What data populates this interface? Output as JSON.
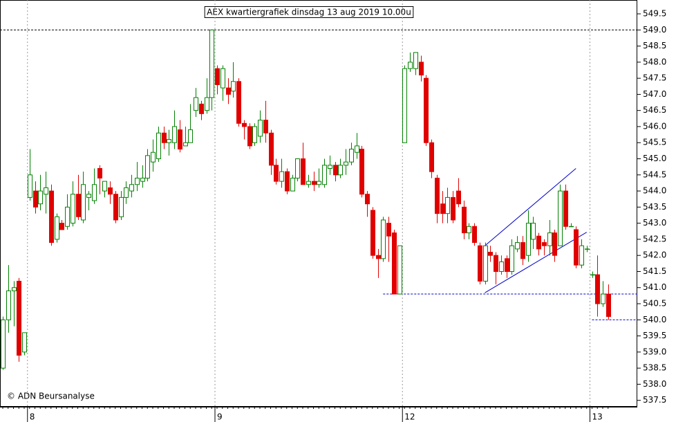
{
  "chart_data": {
    "type": "candlestick",
    "title": "AEX kwartiergrafiek dinsdag 13 aug 2019 10.00u",
    "annotation": "© ADN Beursanalyse",
    "categories": [
      null,
      null,
      null,
      null,
      null,
      "8",
      null,
      null,
      null,
      null,
      null,
      null,
      null,
      null,
      null,
      null,
      null,
      null,
      null,
      null,
      null,
      null,
      null,
      null,
      null,
      null,
      null,
      null,
      null,
      null,
      null,
      null,
      null,
      null,
      null,
      null,
      null,
      null,
      null,
      null,
      "9",
      null,
      null,
      null,
      null,
      null,
      null,
      null,
      null,
      null,
      null,
      null,
      null,
      null,
      null,
      null,
      null,
      null,
      null,
      null,
      null,
      null,
      null,
      null,
      null,
      null,
      null,
      null,
      null,
      null,
      null,
      null,
      null,
      null,
      null,
      "12",
      null,
      null,
      null,
      null,
      null,
      null,
      null,
      null,
      null,
      null,
      null,
      null,
      null,
      null,
      null,
      null,
      null,
      null,
      null,
      null,
      null,
      null,
      null,
      null,
      null,
      null,
      null,
      null,
      null,
      null,
      null,
      null,
      null,
      null,
      "13",
      null,
      null,
      null
    ],
    "ohlc": [
      [
        538.5,
        540.1,
        538.45,
        540.0
      ],
      [
        540.0,
        541.7,
        539.6,
        540.9
      ],
      [
        540.9,
        541.2,
        539.8,
        541.0
      ],
      [
        541.2,
        541.3,
        538.7,
        538.9
      ],
      [
        539.0,
        539.6,
        538.9,
        539.6
      ],
      [
        543.8,
        545.3,
        543.7,
        544.5
      ],
      [
        544.0,
        544.3,
        543.3,
        543.5
      ],
      [
        543.6,
        544.5,
        543.4,
        544.0
      ],
      [
        543.9,
        544.6,
        543.3,
        544.1
      ],
      [
        544.0,
        544.2,
        542.3,
        542.4
      ],
      [
        542.5,
        543.3,
        542.4,
        543.2
      ],
      [
        543.0,
        543.1,
        542.8,
        542.8
      ],
      [
        542.9,
        543.9,
        542.8,
        543.5
      ],
      [
        543.0,
        544.3,
        542.9,
        543.9
      ],
      [
        543.9,
        544.5,
        543.1,
        543.2
      ],
      [
        543.1,
        544.6,
        543.0,
        544.2
      ],
      [
        543.8,
        544.0,
        543.4,
        543.9
      ],
      [
        543.7,
        544.7,
        543.6,
        544.2
      ],
      [
        544.7,
        544.8,
        543.9,
        544.4
      ],
      [
        544.0,
        544.3,
        543.8,
        544.3
      ],
      [
        544.1,
        544.3,
        543.6,
        543.9
      ],
      [
        543.9,
        544.0,
        543.0,
        543.1
      ],
      [
        543.2,
        544.0,
        543.1,
        543.8
      ],
      [
        543.8,
        544.3,
        543.6,
        544.1
      ],
      [
        544.0,
        544.5,
        543.8,
        544.2
      ],
      [
        544.2,
        544.9,
        544.0,
        544.4
      ],
      [
        544.3,
        544.8,
        544.1,
        544.4
      ],
      [
        544.4,
        545.3,
        544.3,
        545.1
      ],
      [
        544.9,
        545.6,
        544.6,
        545.2
      ],
      [
        545.0,
        546.0,
        544.9,
        545.8
      ],
      [
        545.8,
        546.0,
        545.3,
        545.5
      ],
      [
        545.5,
        545.9,
        545.1,
        545.6
      ],
      [
        545.5,
        546.5,
        545.3,
        546.0
      ],
      [
        545.9,
        546.2,
        545.2,
        545.3
      ],
      [
        545.4,
        546.0,
        545.4,
        545.5
      ],
      [
        545.5,
        546.7,
        545.5,
        545.9
      ],
      [
        546.5,
        547.2,
        546.3,
        546.9
      ],
      [
        546.7,
        546.8,
        546.2,
        546.4
      ],
      [
        546.5,
        547.5,
        546.4,
        546.9
      ],
      [
        546.9,
        549.0,
        546.5,
        549.0
      ],
      [
        547.8,
        547.9,
        547.0,
        547.3
      ],
      [
        547.2,
        547.9,
        546.8,
        547.8
      ],
      [
        547.2,
        547.5,
        546.7,
        547.0
      ],
      [
        547.1,
        548.0,
        546.9,
        547.4
      ],
      [
        547.4,
        547.5,
        546.0,
        546.1
      ],
      [
        546.1,
        546.2,
        545.6,
        546.0
      ],
      [
        546.0,
        546.1,
        545.3,
        545.4
      ],
      [
        545.5,
        546.1,
        545.4,
        546.0
      ],
      [
        545.7,
        546.5,
        545.5,
        546.2
      ],
      [
        546.2,
        546.8,
        545.5,
        545.8
      ],
      [
        545.8,
        545.9,
        544.5,
        544.8
      ],
      [
        544.8,
        545.0,
        544.2,
        544.3
      ],
      [
        544.3,
        545.0,
        544.1,
        544.6
      ],
      [
        544.6,
        544.7,
        543.9,
        544.0
      ],
      [
        544.0,
        544.5,
        544.0,
        544.4
      ],
      [
        544.4,
        545.0,
        544.3,
        545.0
      ],
      [
        545.0,
        545.5,
        544.2,
        544.2
      ],
      [
        544.2,
        544.5,
        544.1,
        544.3
      ],
      [
        544.3,
        544.6,
        544.0,
        544.2
      ],
      [
        544.2,
        544.7,
        544.1,
        544.3
      ],
      [
        544.2,
        545.0,
        544.1,
        544.8
      ],
      [
        544.7,
        545.1,
        544.5,
        544.8
      ],
      [
        544.8,
        544.9,
        544.3,
        544.5
      ],
      [
        544.5,
        545.0,
        544.4,
        544.8
      ],
      [
        544.8,
        545.3,
        544.5,
        544.9
      ],
      [
        544.9,
        545.5,
        544.8,
        545.3
      ],
      [
        545.2,
        545.8,
        545.0,
        545.4
      ],
      [
        545.3,
        545.4,
        543.8,
        543.9
      ],
      [
        543.9,
        544.0,
        543.2,
        543.6
      ],
      [
        543.4,
        543.5,
        541.9,
        542.0
      ],
      [
        542.0,
        542.2,
        541.3,
        541.9
      ],
      [
        541.9,
        543.2,
        541.8,
        543.1
      ],
      [
        543.0,
        543.2,
        541.8,
        542.6
      ],
      [
        542.7,
        542.8,
        540.8,
        540.8
      ],
      [
        540.8,
        542.3,
        540.8,
        542.3
      ],
      [
        545.5,
        547.9,
        545.5,
        547.8
      ],
      [
        547.8,
        548.3,
        547.7,
        548.0
      ],
      [
        547.8,
        548.3,
        547.6,
        548.3
      ],
      [
        548.0,
        548.2,
        547.4,
        547.6
      ],
      [
        547.5,
        547.6,
        545.4,
        545.5
      ],
      [
        545.5,
        545.6,
        544.4,
        544.6
      ],
      [
        544.4,
        544.5,
        543.0,
        543.3
      ],
      [
        543.6,
        544.0,
        543.0,
        543.3
      ],
      [
        543.3,
        544.1,
        543.0,
        543.8
      ],
      [
        543.8,
        544.0,
        543.0,
        543.1
      ],
      [
        544.0,
        544.4,
        543.5,
        543.6
      ],
      [
        543.5,
        543.7,
        542.5,
        542.7
      ],
      [
        542.7,
        543.0,
        542.5,
        542.9
      ],
      [
        542.9,
        543.0,
        542.3,
        542.4
      ],
      [
        542.3,
        542.4,
        541.1,
        541.2
      ],
      [
        541.2,
        542.4,
        541.1,
        542.3
      ],
      [
        542.1,
        542.3,
        541.8,
        542.0
      ],
      [
        542.0,
        542.1,
        541.1,
        541.5
      ],
      [
        541.5,
        542.0,
        541.4,
        541.8
      ],
      [
        541.9,
        542.0,
        541.3,
        541.5
      ],
      [
        541.5,
        542.5,
        541.4,
        542.3
      ],
      [
        542.2,
        542.6,
        542.1,
        542.4
      ],
      [
        542.4,
        542.6,
        541.7,
        541.9
      ],
      [
        542.0,
        543.4,
        541.8,
        543.0
      ],
      [
        542.5,
        543.2,
        542.2,
        543.0
      ],
      [
        542.6,
        542.7,
        542.0,
        542.2
      ],
      [
        542.4,
        542.5,
        542.0,
        542.3
      ],
      [
        542.3,
        543.1,
        542.0,
        542.7
      ],
      [
        542.7,
        542.8,
        541.8,
        542.0
      ],
      [
        542.3,
        544.2,
        542.3,
        544.0
      ],
      [
        544.0,
        544.2,
        542.8,
        542.9
      ],
      [
        542.9,
        543.0,
        542.9,
        542.9
      ],
      [
        542.8,
        542.9,
        541.6,
        541.7
      ],
      [
        541.7,
        542.5,
        541.6,
        542.3
      ],
      [
        542.2,
        542.3,
        542.1,
        542.2
      ],
      [
        541.4,
        541.5,
        541.3,
        541.4
      ],
      [
        541.4,
        542.0,
        540.1,
        540.5
      ],
      [
        540.5,
        541.2,
        540.4,
        540.8
      ],
      [
        540.8,
        541.1,
        540.0,
        540.1
      ]
    ],
    "up_color": "#008000",
    "down_color": "#e00000",
    "ylim": [
      537.3,
      549.93
    ],
    "yticks": [
      {
        "value": 537.5,
        "label": "537.5"
      },
      {
        "value": 538,
        "label": "538.0"
      },
      {
        "value": 538.5,
        "label": "538.5"
      },
      {
        "value": 539,
        "label": "539.0"
      },
      {
        "value": 539.5,
        "label": "539.5"
      },
      {
        "value": 540,
        "label": "540.0"
      },
      {
        "value": 540.5,
        "label": "540.5"
      },
      {
        "value": 541,
        "label": "541.0"
      },
      {
        "value": 541.5,
        "label": "541.5"
      },
      {
        "value": 542,
        "label": "542.0"
      },
      {
        "value": 542.5,
        "label": "542.5"
      },
      {
        "value": 543,
        "label": "543.0"
      },
      {
        "value": 543.5,
        "label": "543.5"
      },
      {
        "value": 544,
        "label": "544.0"
      },
      {
        "value": 544.5,
        "label": "544.5"
      },
      {
        "value": 545,
        "label": "545.0"
      },
      {
        "value": 545.5,
        "label": "545.5"
      },
      {
        "value": 546,
        "label": "546.0"
      },
      {
        "value": 546.5,
        "label": "546.5"
      },
      {
        "value": 547,
        "label": "547.0"
      },
      {
        "value": 547.5,
        "label": "547.5"
      },
      {
        "value": 548,
        "label": "548.0"
      },
      {
        "value": 548.5,
        "label": "548.5"
      },
      {
        "value": 549,
        "label": "549.0"
      },
      {
        "value": 549.5,
        "label": "549.5"
      }
    ],
    "hlines": [
      {
        "value": 549.0,
        "from": 0,
        "color": "#000000"
      },
      {
        "value": 540.8,
        "from": 71,
        "color": "#0000cc"
      },
      {
        "value": 540.0,
        "from": 110,
        "color": "#0000cc"
      }
    ],
    "trendlines": [
      {
        "x": [
          90,
          107
        ],
        "y": [
          542.3,
          544.7
        ],
        "color": "#0000cc"
      },
      {
        "x": [
          90,
          109
        ],
        "y": [
          540.84,
          542.72
        ],
        "color": "#0000cc"
      }
    ]
  }
}
